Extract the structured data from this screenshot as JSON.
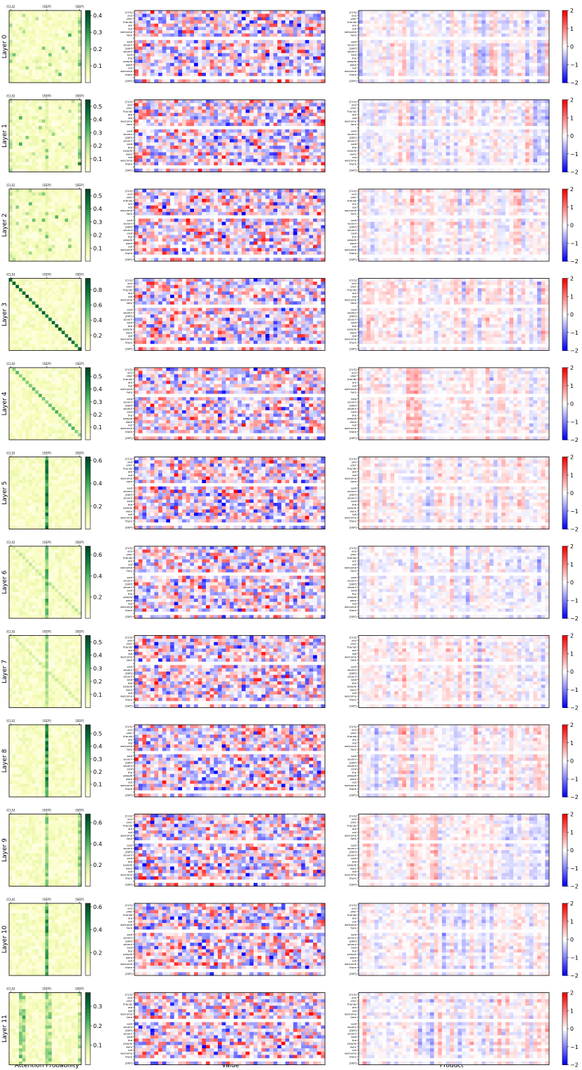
{
  "figure": {
    "row_label_prefix": "Layer ",
    "xlabels": {
      "attention": "Attention Probability",
      "value": "Value",
      "product": "Product"
    },
    "attention_tick_labels": [
      "[CLS]",
      "[SEP]",
      "[SEP]"
    ],
    "tokens": [
      "[CLS]",
      "you",
      "your",
      "friends",
      "are",
      "not",
      "welcome",
      "here",
      "",
      "said",
      "severn",
      "[SEP]",
      "severn",
      "said",
      "the",
      "people",
      "were",
      "not",
      "welcome",
      "there",
      "",
      "[SEP]"
    ],
    "colors": {
      "attention_cmap": [
        "#ffffe5",
        "#f7fcb9",
        "#d9f0a3",
        "#addd8e",
        "#78c679",
        "#41ab5d",
        "#238443",
        "#006837",
        "#004529"
      ],
      "diverging_low": "#0000ff",
      "diverging_mid": "#ffffff",
      "diverging_high": "#ff0000",
      "frame": "#000000"
    }
  },
  "chart_data": [
    {
      "type": "heatmap",
      "panel": "attention",
      "layer": 0,
      "colorbar_ticks": [
        0.1,
        0.2,
        0.3,
        0.4
      ],
      "vmax": 0.43
    },
    {
      "type": "heatmap",
      "panel": "attention",
      "layer": 1,
      "colorbar_ticks": [
        0.1,
        0.2,
        0.3,
        0.4,
        0.5
      ],
      "vmax": 0.55
    },
    {
      "type": "heatmap",
      "panel": "attention",
      "layer": 2,
      "colorbar_ticks": [
        0.1,
        0.2,
        0.3,
        0.4,
        0.5
      ],
      "vmax": 0.55
    },
    {
      "type": "heatmap",
      "panel": "attention",
      "layer": 3,
      "colorbar_ticks": [
        0.2,
        0.4,
        0.6,
        0.8
      ],
      "vmax": 0.95
    },
    {
      "type": "heatmap",
      "panel": "attention",
      "layer": 4,
      "colorbar_ticks": [
        0.1,
        0.2,
        0.3,
        0.4,
        0.5
      ],
      "vmax": 0.57
    },
    {
      "type": "heatmap",
      "panel": "attention",
      "layer": 5,
      "colorbar_ticks": [
        0.2,
        0.4,
        0.6
      ],
      "vmax": 0.63
    },
    {
      "type": "heatmap",
      "panel": "attention",
      "layer": 6,
      "colorbar_ticks": [
        0.2,
        0.4,
        0.6
      ],
      "vmax": 0.68
    },
    {
      "type": "heatmap",
      "panel": "attention",
      "layer": 7,
      "colorbar_ticks": [
        0.1,
        0.2,
        0.3,
        0.4,
        0.5
      ],
      "vmax": 0.55
    },
    {
      "type": "heatmap",
      "panel": "attention",
      "layer": 8,
      "colorbar_ticks": [
        0.1,
        0.2,
        0.3,
        0.4,
        0.5
      ],
      "vmax": 0.57
    },
    {
      "type": "heatmap",
      "panel": "attention",
      "layer": 9,
      "colorbar_ticks": [
        0.2,
        0.4,
        0.6
      ],
      "vmax": 0.68
    },
    {
      "type": "heatmap",
      "panel": "attention",
      "layer": 10,
      "colorbar_ticks": [
        0.2,
        0.4,
        0.6
      ],
      "vmax": 0.63
    },
    {
      "type": "heatmap",
      "panel": "attention",
      "layer": 11,
      "colorbar_ticks": [
        0.1,
        0.2,
        0.3
      ],
      "vmax": 0.37
    },
    {
      "type": "heatmap",
      "panel": "product",
      "layers": [
        0,
        1,
        2,
        3,
        4,
        5,
        6,
        7,
        8,
        9,
        10,
        11
      ],
      "colorbar_ticks": [
        -2,
        -1,
        0,
        1,
        2
      ],
      "vmin": -2,
      "vmax": 2
    },
    {
      "type": "heatmap",
      "panel": "value",
      "layers": [
        0,
        1,
        2,
        3,
        4,
        5,
        6,
        7,
        8,
        9,
        10,
        11
      ],
      "colormap": "bwr"
    }
  ]
}
